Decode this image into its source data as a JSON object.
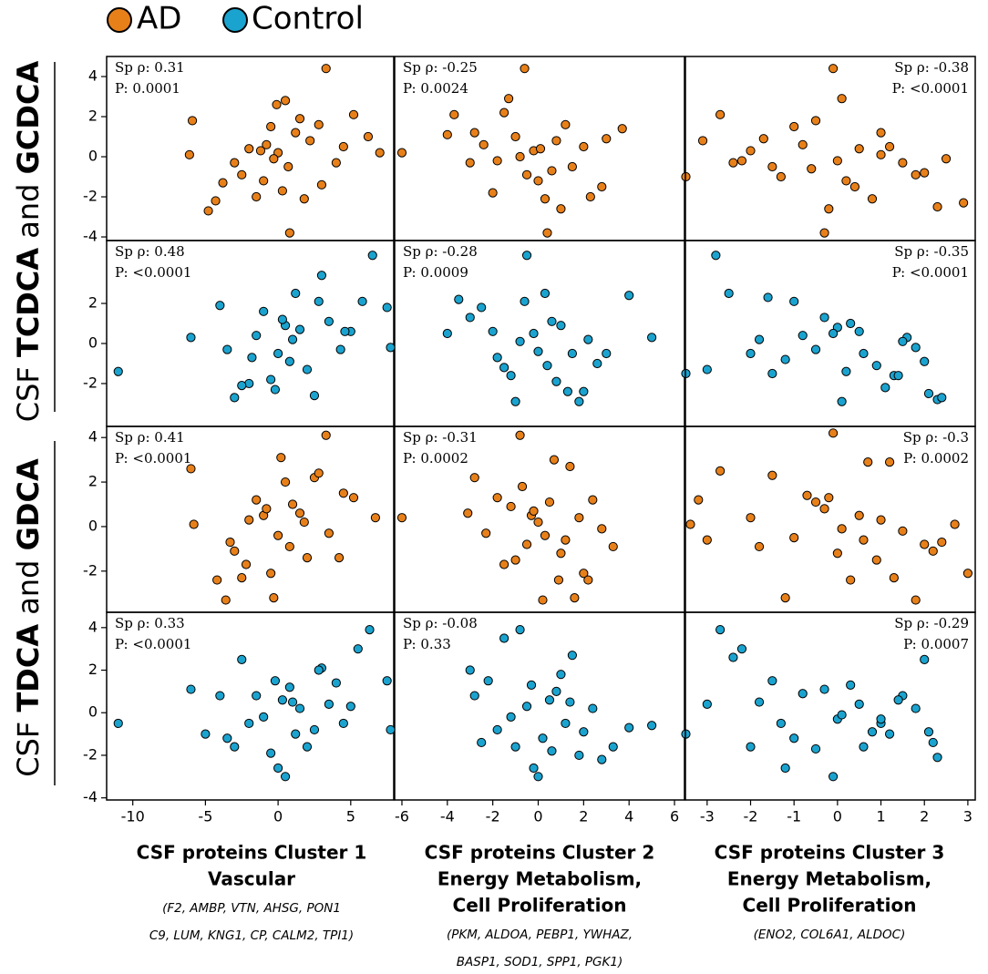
{
  "rows": [
    {
      "parts": [
        {
          "text": "CSF ",
          "bold": false
        },
        {
          "text": "TCDCA",
          "bold": true
        },
        {
          "text": " and ",
          "bold": false
        },
        {
          "text": "GCDCA",
          "bold": true
        }
      ]
    },
    {
      "parts": [
        {
          "text": "CSF ",
          "bold": false
        },
        {
          "text": "TDCA",
          "bold": true
        },
        {
          "text": " and ",
          "bold": false
        },
        {
          "text": "GDCA",
          "bold": true
        }
      ]
    }
  ],
  "columns": [
    {
      "title_lines": [
        "CSF proteins Cluster 1",
        "Vascular"
      ],
      "gene_lines": [
        "(F2, AMBP, VTN, AHSG, PON1",
        "C9, LUM, KNG1, CP, CALM2, TPI1)"
      ]
    },
    {
      "title_lines": [
        "CSF proteins Cluster 2",
        "Energy Metabolism,",
        "Cell Proliferation"
      ],
      "gene_lines": [
        "(PKM, ALDOA, PEBP1, YWHAZ,",
        "BASP1, SOD1, SPP1, PGK1)"
      ]
    },
    {
      "title_lines": [
        "CSF proteins Cluster 3",
        "Energy Metabolism,",
        "Cell Proliferation"
      ],
      "gene_lines": [
        "(ENO2, COL6A1, ALDOC)"
      ]
    }
  ],
  "chart_data": [
    {
      "type": "scatter",
      "annotation": [
        "Sp ρ: 0.31",
        "P: 0.0001"
      ],
      "annotation_corner": "top-left",
      "xlim": [
        -11.8,
        7.96
      ],
      "ylim": [
        -4.18,
        5.0
      ],
      "yticks": [
        4,
        2,
        0,
        -2,
        -4
      ],
      "series": [
        {
          "name": "AD",
          "color": "#e8801a",
          "x": [
            3.3,
            -5.9,
            -6.1,
            -4.8,
            -4.3,
            0.8,
            7,
            5.2,
            0.5,
            -0.1,
            -3,
            -2,
            -1,
            -0.5,
            0,
            0.7,
            1.5,
            2.2,
            3,
            4,
            -1.5,
            1.2,
            -2.5,
            0.3,
            -0.8,
            2.8,
            4.5,
            -3.8,
            1.8,
            -0.3,
            6.2,
            -1.2
          ],
          "values": [
            4.4,
            1.8,
            0.1,
            -2.7,
            -2.2,
            -3.8,
            0.2,
            2.1,
            2.8,
            2.6,
            -0.3,
            0.4,
            -1.2,
            1.5,
            0.2,
            -0.5,
            1.9,
            0.8,
            -1.4,
            -0.3,
            -2,
            1.2,
            -0.9,
            -1.7,
            0.6,
            1.6,
            0.5,
            -1.3,
            -2.1,
            -0.1,
            1,
            0.3
          ]
        }
      ]
    },
    {
      "type": "scatter",
      "annotation": [
        "Sp ρ: -0.25",
        "P: 0.0024"
      ],
      "annotation_corner": "top-left",
      "xlim": [
        -6.32,
        6.44
      ],
      "ylim": [
        -4.18,
        5.0
      ],
      "series": [
        {
          "name": "AD",
          "color": "#e8801a",
          "x": [
            -0.6,
            -6,
            6.5,
            -1.3,
            -2.8,
            0.4,
            1,
            -0.2,
            2,
            3.7,
            -1.5,
            0,
            0.8,
            -3,
            -2,
            1.5,
            2.8,
            -0.8,
            0.3,
            -1,
            1.2,
            -2.4,
            3,
            -4,
            0.6,
            -0.5,
            2.3,
            -3.7,
            -1.8,
            0.1
          ],
          "values": [
            4.4,
            0.2,
            -1,
            2.9,
            1.2,
            -3.8,
            -2.6,
            0.3,
            0.5,
            1.4,
            2.2,
            -1.2,
            0.8,
            -0.3,
            -1.8,
            -0.5,
            -1.5,
            0,
            -2.1,
            1,
            1.6,
            0.6,
            0.9,
            1.1,
            -0.7,
            -0.9,
            -2,
            2.1,
            -0.2,
            0.4
          ]
        }
      ]
    },
    {
      "type": "scatter",
      "annotation": [
        "Sp ρ: -0.38",
        "P: <0.0001"
      ],
      "annotation_corner": "top-right",
      "xlim": [
        -3.5,
        3.17
      ],
      "ylim": [
        -4.18,
        5.0
      ],
      "series": [
        {
          "name": "AD",
          "color": "#e8801a",
          "x": [
            -0.1,
            -3.1,
            -0.3,
            2.9,
            -2.7,
            -2.4,
            -0.5,
            1,
            1.5,
            0,
            0.5,
            -1,
            -1.5,
            -2,
            2,
            2.5,
            -0.8,
            0.2,
            1.2,
            -1.3,
            0.8,
            -0.2,
            1.8,
            -1.7,
            0.4,
            -0.6,
            1,
            2.3,
            0.1,
            -2.2
          ],
          "values": [
            4.4,
            0.8,
            -3.8,
            -2.3,
            2.1,
            -0.3,
            1.8,
            1.2,
            -0.3,
            -0.2,
            0.4,
            1.5,
            -0.5,
            0.3,
            -0.8,
            -0.1,
            0.6,
            -1.2,
            0.5,
            -1,
            -2.1,
            -2.6,
            -0.9,
            0.9,
            -1.5,
            -0.6,
            0.1,
            -2.5,
            2.9,
            -0.2
          ]
        }
      ]
    },
    {
      "type": "scatter",
      "annotation": [
        "Sp ρ: 0.48",
        "P: <0.0001"
      ],
      "annotation_corner": "top-left",
      "xlim": [
        -11.8,
        7.96
      ],
      "ylim": [
        -4.14,
        5.14
      ],
      "yticks": [
        2,
        0,
        -2
      ],
      "series": [
        {
          "name": "Control",
          "color": "#1ba3cf",
          "x": [
            6.5,
            -11,
            -6,
            -4,
            -2,
            3,
            5,
            7.5,
            -3,
            -1,
            0,
            1,
            2,
            0.5,
            -0.5,
            1.5,
            4.3,
            -2.5,
            3.5,
            -1.5,
            2.5,
            0.8,
            -3.5,
            4.6,
            1.2,
            -0.2,
            2.8,
            -1.8,
            5.8,
            0.3
          ],
          "values": [
            4.4,
            -1.4,
            0.3,
            1.9,
            -2,
            3.4,
            0.6,
            1.8,
            -2.7,
            1.6,
            -0.5,
            0.2,
            -1.3,
            0.9,
            -1.8,
            0.7,
            -0.3,
            -2.1,
            1.1,
            0.4,
            -2.6,
            -0.9,
            -0.3,
            0.6,
            2.5,
            -2.3,
            2.1,
            -0.7,
            2.1,
            1.2
          ]
        }
      ]
    },
    {
      "type": "scatter",
      "annotation": [
        "Sp ρ: -0.28",
        "P: 0.0009"
      ],
      "annotation_corner": "top-left",
      "xlim": [
        -6.32,
        6.44
      ],
      "ylim": [
        -4.14,
        5.14
      ],
      "series": [
        {
          "name": "Control",
          "color": "#1ba3cf",
          "x": [
            -0.5,
            -6.5,
            6.5,
            -3.5,
            4,
            5,
            -1,
            0.3,
            1.5,
            -2,
            2,
            -0.8,
            0.6,
            -1.5,
            1,
            2.6,
            -3,
            0,
            1.8,
            -0.2,
            -2.5,
            0.8,
            3,
            -1.2,
            2.2,
            -4,
            0.4,
            -0.6,
            1.3,
            -1.8
          ],
          "values": [
            4.4,
            -0.2,
            -1.5,
            2.2,
            2.4,
            0.3,
            -2.9,
            2.5,
            -0.5,
            0.6,
            -2.4,
            0.1,
            1.1,
            -1.2,
            0.9,
            -1,
            1.3,
            -0.4,
            -2.9,
            0.5,
            1.8,
            -1.9,
            -0.5,
            -1.6,
            0.2,
            0.5,
            -1.1,
            2.1,
            -2.4,
            -0.7
          ]
        }
      ]
    },
    {
      "type": "scatter",
      "annotation": [
        "Sp ρ: -0.35",
        "P: <0.0001"
      ],
      "annotation_corner": "top-right",
      "xlim": [
        -3.5,
        3.17
      ],
      "ylim": [
        -4.14,
        5.14
      ],
      "series": [
        {
          "name": "Control",
          "color": "#1ba3cf",
          "x": [
            -2.8,
            -3,
            -1.6,
            -1,
            0.1,
            1.3,
            2.1,
            2.3,
            2.4,
            -2.5,
            -1.5,
            -0.3,
            0.6,
            1.6,
            -2,
            -0.8,
            0.3,
            0.9,
            1.8,
            -1.2,
            0,
            1.1,
            -0.5,
            0.5,
            2,
            -1.8,
            1.4,
            0.2,
            -0.1,
            1.5
          ],
          "values": [
            4.4,
            -1.3,
            2.3,
            2.1,
            -2.9,
            -1.6,
            -2.5,
            -2.8,
            -2.7,
            2.5,
            -1.5,
            1.3,
            -0.5,
            0.3,
            -0.5,
            0.4,
            1,
            -1.1,
            -0.2,
            -0.8,
            0.8,
            -2.2,
            -0.3,
            0.6,
            -0.9,
            0.2,
            -1.6,
            -1.4,
            0.5,
            0.1
          ]
        }
      ]
    },
    {
      "type": "scatter",
      "annotation": [
        "Sp ρ: 0.41",
        "P: <0.0001"
      ],
      "annotation_corner": "top-left",
      "xlim": [
        -11.8,
        7.96
      ],
      "ylim": [
        -3.85,
        4.5
      ],
      "yticks": [
        4,
        2,
        0,
        -2
      ],
      "series": [
        {
          "name": "AD",
          "color": "#e8801a",
          "x": [
            3.3,
            -6,
            -5.8,
            -4.2,
            -3.6,
            -0.3,
            -3.3,
            6.7,
            5.2,
            2.5,
            4.5,
            -1,
            0,
            1,
            2,
            0.5,
            -2,
            -2.5,
            1.5,
            3.5,
            0.8,
            -1.5,
            -0.5,
            -3,
            2.8,
            4.2,
            0.2,
            -0.8,
            1.8,
            -2.2
          ],
          "values": [
            4.1,
            2.6,
            0.1,
            -2.4,
            -3.3,
            -3.2,
            -0.7,
            0.4,
            1.3,
            2.2,
            1.5,
            0.5,
            -0.4,
            1,
            -1.4,
            2,
            0.3,
            -2.3,
            0.6,
            -0.3,
            -0.9,
            1.2,
            -2.1,
            -1.1,
            2.4,
            -1.4,
            3.1,
            0.8,
            0.2,
            -1.7
          ]
        }
      ]
    },
    {
      "type": "scatter",
      "annotation": [
        "Sp ρ: -0.31",
        "P: 0.0002"
      ],
      "annotation_corner": "top-left",
      "xlim": [
        -6.32,
        6.44
      ],
      "ylim": [
        -3.85,
        4.5
      ],
      "series": [
        {
          "name": "AD",
          "color": "#e8801a",
          "x": [
            -0.8,
            -6,
            6.7,
            -2.8,
            -1.8,
            0.7,
            1.4,
            2.8,
            -0.3,
            0.2,
            1,
            -1.2,
            2,
            -0.5,
            0.5,
            -2.3,
            1.6,
            3.3,
            -1,
            0,
            2.4,
            -1.5,
            1.2,
            -0.2,
            0.9,
            -3.1,
            0.3,
            -0.7,
            1.8,
            2.2
          ],
          "values": [
            4.1,
            0.4,
            0.1,
            2.2,
            1.3,
            3,
            2.7,
            -0.1,
            0.5,
            -3.3,
            -1.2,
            0.9,
            -2.1,
            -0.8,
            1.1,
            -0.3,
            -3.2,
            -0.9,
            -1.5,
            0.2,
            1.2,
            -1.7,
            -0.6,
            0.7,
            -2.4,
            0.6,
            -0.4,
            1.8,
            0.4,
            -2.4
          ]
        }
      ]
    },
    {
      "type": "scatter",
      "annotation": [
        "Sp ρ: -0.3",
        "P: 0.0002"
      ],
      "annotation_corner": "top-right",
      "xlim": [
        -3.5,
        3.17
      ],
      "ylim": [
        -3.85,
        4.5
      ],
      "series": [
        {
          "name": "AD",
          "color": "#e8801a",
          "x": [
            -0.1,
            -3.2,
            -2.7,
            -3,
            2.7,
            3,
            1.2,
            0.7,
            -1.2,
            -2,
            -1.5,
            0,
            0.5,
            1,
            1.5,
            2,
            2.4,
            -0.5,
            -1,
            0.3,
            0.9,
            -0.3,
            1.8,
            -1.8,
            2.2,
            -0.7,
            0.1,
            1.3,
            -0.2,
            0.6
          ],
          "values": [
            4.2,
            1.2,
            2.5,
            -0.6,
            0.1,
            -2.1,
            2.9,
            2.9,
            -3.2,
            0.4,
            2.3,
            -1.2,
            0.5,
            0.3,
            -0.2,
            -0.8,
            -0.7,
            1.1,
            -0.5,
            -2.4,
            -1.5,
            0.8,
            -3.3,
            -0.9,
            -1.1,
            1.4,
            -0.1,
            -2.3,
            1.3,
            -0.6
          ]
        }
      ]
    },
    {
      "type": "scatter",
      "annotation": [
        "Sp ρ: 0.33",
        "P: <0.0001"
      ],
      "annotation_corner": "top-left",
      "xlim": [
        -11.8,
        7.96
      ],
      "ylim": [
        -4.1,
        4.72
      ],
      "xticks": [
        -10,
        -5,
        0,
        5
      ],
      "yticks": [
        4,
        2,
        0,
        -2,
        -4
      ],
      "series": [
        {
          "name": "Control",
          "color": "#1ba3cf",
          "x": [
            6.3,
            -11,
            -6,
            -5,
            -2.5,
            0,
            0.5,
            3,
            5.5,
            7.5,
            -3.5,
            -1.5,
            1,
            2,
            4,
            -2,
            -0.5,
            1.5,
            2.5,
            -4,
            0.8,
            3.5,
            -1,
            -3,
            4.5,
            1.2,
            -0.2,
            2.8,
            5,
            0.3
          ],
          "values": [
            3.9,
            -0.5,
            1.1,
            -1,
            2.5,
            -2.6,
            -3,
            2.1,
            3,
            1.5,
            -1.2,
            0.8,
            0.5,
            -1.6,
            1.4,
            -0.5,
            -1.9,
            0.2,
            -0.8,
            0.8,
            1.2,
            0.4,
            -0.2,
            -1.6,
            -0.5,
            -1,
            1.5,
            2,
            0.3,
            0.6
          ]
        }
      ]
    },
    {
      "type": "scatter",
      "annotation": [
        "Sp ρ: -0.08",
        "P: 0.33"
      ],
      "annotation_corner": "top-left",
      "xlim": [
        -6.32,
        6.44
      ],
      "ylim": [
        -4.1,
        4.72
      ],
      "xticks": [
        -6,
        -4,
        -2,
        0,
        2,
        4,
        6
      ],
      "series": [
        {
          "name": "Control",
          "color": "#1ba3cf",
          "x": [
            -0.8,
            -6.5,
            6.5,
            -1.5,
            3.3,
            5,
            1.5,
            -2.8,
            -0.2,
            0,
            1,
            2,
            -1,
            0.5,
            2.8,
            -2.2,
            1.2,
            -0.5,
            0.8,
            -1.8,
            2.4,
            -3,
            0.2,
            1.8,
            -1.2,
            4,
            -0.3,
            0.6,
            1.4,
            -2.5
          ],
          "values": [
            3.9,
            -0.8,
            -1,
            3.5,
            -1.6,
            -0.6,
            2.7,
            0.8,
            -2.6,
            -3,
            1.8,
            -0.9,
            -1.6,
            0.6,
            -2.2,
            1.5,
            -0.5,
            0.3,
            1,
            -0.8,
            0.2,
            2,
            -1.2,
            -2,
            -0.2,
            -0.7,
            1.3,
            -1.8,
            0.5,
            -1.4
          ]
        }
      ]
    },
    {
      "type": "scatter",
      "annotation": [
        "Sp ρ: -0.29",
        "P: 0.0007"
      ],
      "annotation_corner": "top-right",
      "xlim": [
        -3.5,
        3.17
      ],
      "ylim": [
        -4.1,
        4.72
      ],
      "xticks": [
        -3,
        -2,
        -1,
        0,
        1,
        2,
        3
      ],
      "series": [
        {
          "name": "Control",
          "color": "#1ba3cf",
          "x": [
            -2.7,
            -3,
            -2.2,
            -1.2,
            -0.1,
            2,
            2.2,
            2.3,
            -2.4,
            -1.5,
            -1,
            0,
            0.5,
            1,
            1.5,
            -2,
            -0.5,
            0.3,
            0.8,
            1.2,
            1.8,
            -1.8,
            -0.8,
            0.1,
            0.6,
            1.4,
            -1.3,
            -0.3,
            1,
            2.1
          ],
          "values": [
            3.9,
            0.4,
            3,
            -2.6,
            -3,
            2.5,
            -1.4,
            -2.1,
            2.6,
            1.5,
            -1.2,
            -0.3,
            0.4,
            -0.5,
            0.8,
            -1.6,
            -1.7,
            1.3,
            -0.9,
            -1,
            0.2,
            0.5,
            0.9,
            -0.1,
            -1.6,
            0.6,
            -0.5,
            1.1,
            -0.3,
            -0.9
          ]
        }
      ]
    }
  ]
}
